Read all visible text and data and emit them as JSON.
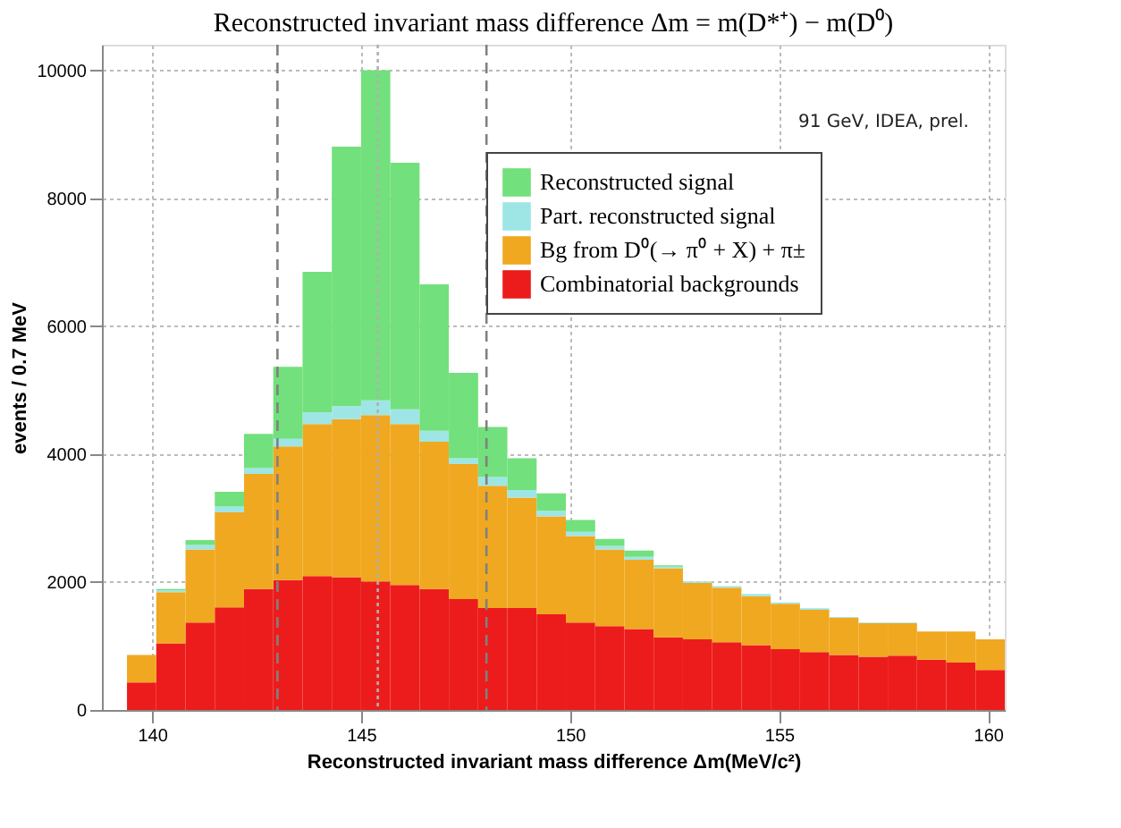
{
  "chart_data": {
    "type": "bar",
    "stacked": true,
    "title": "Reconstructed invariant mass difference Δm = m(D*⁺) − m(D⁰)",
    "xlabel": "Reconstructed invariant mass difference Δm(MeV/c²)",
    "ylabel": "events / 0.7 MeV",
    "x": [
      139.75,
      140.45,
      141.15,
      141.85,
      142.55,
      143.25,
      143.95,
      144.65,
      145.35,
      146.05,
      146.75,
      147.45,
      148.15,
      148.85,
      149.55,
      150.25,
      150.95,
      151.65,
      152.35,
      153.05,
      153.75,
      154.45,
      155.15,
      155.85,
      156.55,
      157.25,
      157.95,
      158.65,
      159.35,
      160.05
    ],
    "series": [
      {
        "name": "Combinatorial backgrounds",
        "color": "#ec1c1c",
        "values": [
          430,
          1040,
          1365,
          1605,
          1890,
          2030,
          2095,
          2075,
          2010,
          1955,
          1890,
          1735,
          1595,
          1595,
          1495,
          1365,
          1310,
          1265,
          1135,
          1105,
          1060,
          1015,
          950,
          905,
          860,
          830,
          850,
          785,
          740,
          625
        ]
      },
      {
        "name": "Bg from D⁰(→ π⁰ + X) + π±",
        "color": "#f0a820",
        "values": [
          430,
          800,
          1145,
          1485,
          1800,
          2090,
          2375,
          2470,
          2600,
          2515,
          2305,
          2110,
          1910,
          1725,
          1530,
          1355,
          1200,
          1085,
          1080,
          880,
          850,
          765,
          710,
          660,
          585,
          525,
          505,
          440,
          485,
          480
        ]
      },
      {
        "name": "Part. reconstructed signal",
        "color": "#9ee6e6",
        "values": [
          0,
          30,
          70,
          90,
          90,
          120,
          185,
          205,
          230,
          230,
          170,
          90,
          135,
          120,
          90,
          65,
          55,
          45,
          25,
          25,
          25,
          35,
          20,
          25,
          10,
          10,
          10,
          null,
          null,
          0
        ]
      },
      {
        "name": "Reconstructed signal",
        "color": "#72e07c",
        "values": [
          0,
          20,
          75,
          230,
          535,
          1125,
          2195,
          4055,
          5160,
          3855,
          2290,
          1335,
          785,
          495,
          270,
          185,
          110,
          95,
          20,
          0,
          0,
          0,
          0,
          0,
          0,
          0,
          0,
          0,
          0,
          0
        ]
      }
    ],
    "xlim": [
      138.8,
      160.4
    ],
    "xticks": [
      140,
      145,
      150,
      155,
      160
    ],
    "ylim": [
      0,
      10400
    ],
    "yticks": [
      0,
      2000,
      4000,
      6000,
      8000,
      10000
    ],
    "ref_lines": [
      {
        "axis": "x",
        "value": 143,
        "color": "#808080",
        "line_style": "dashed"
      },
      {
        "axis": "x",
        "value": 148,
        "color": "#808080",
        "line_style": "dashed"
      },
      {
        "axis": "x",
        "value": 145.4,
        "color": "#b0b0b0",
        "line_style": "dotted"
      }
    ],
    "annotations": [
      "91 GeV, IDEA, prel."
    ],
    "grid": true,
    "legend": "top right"
  }
}
